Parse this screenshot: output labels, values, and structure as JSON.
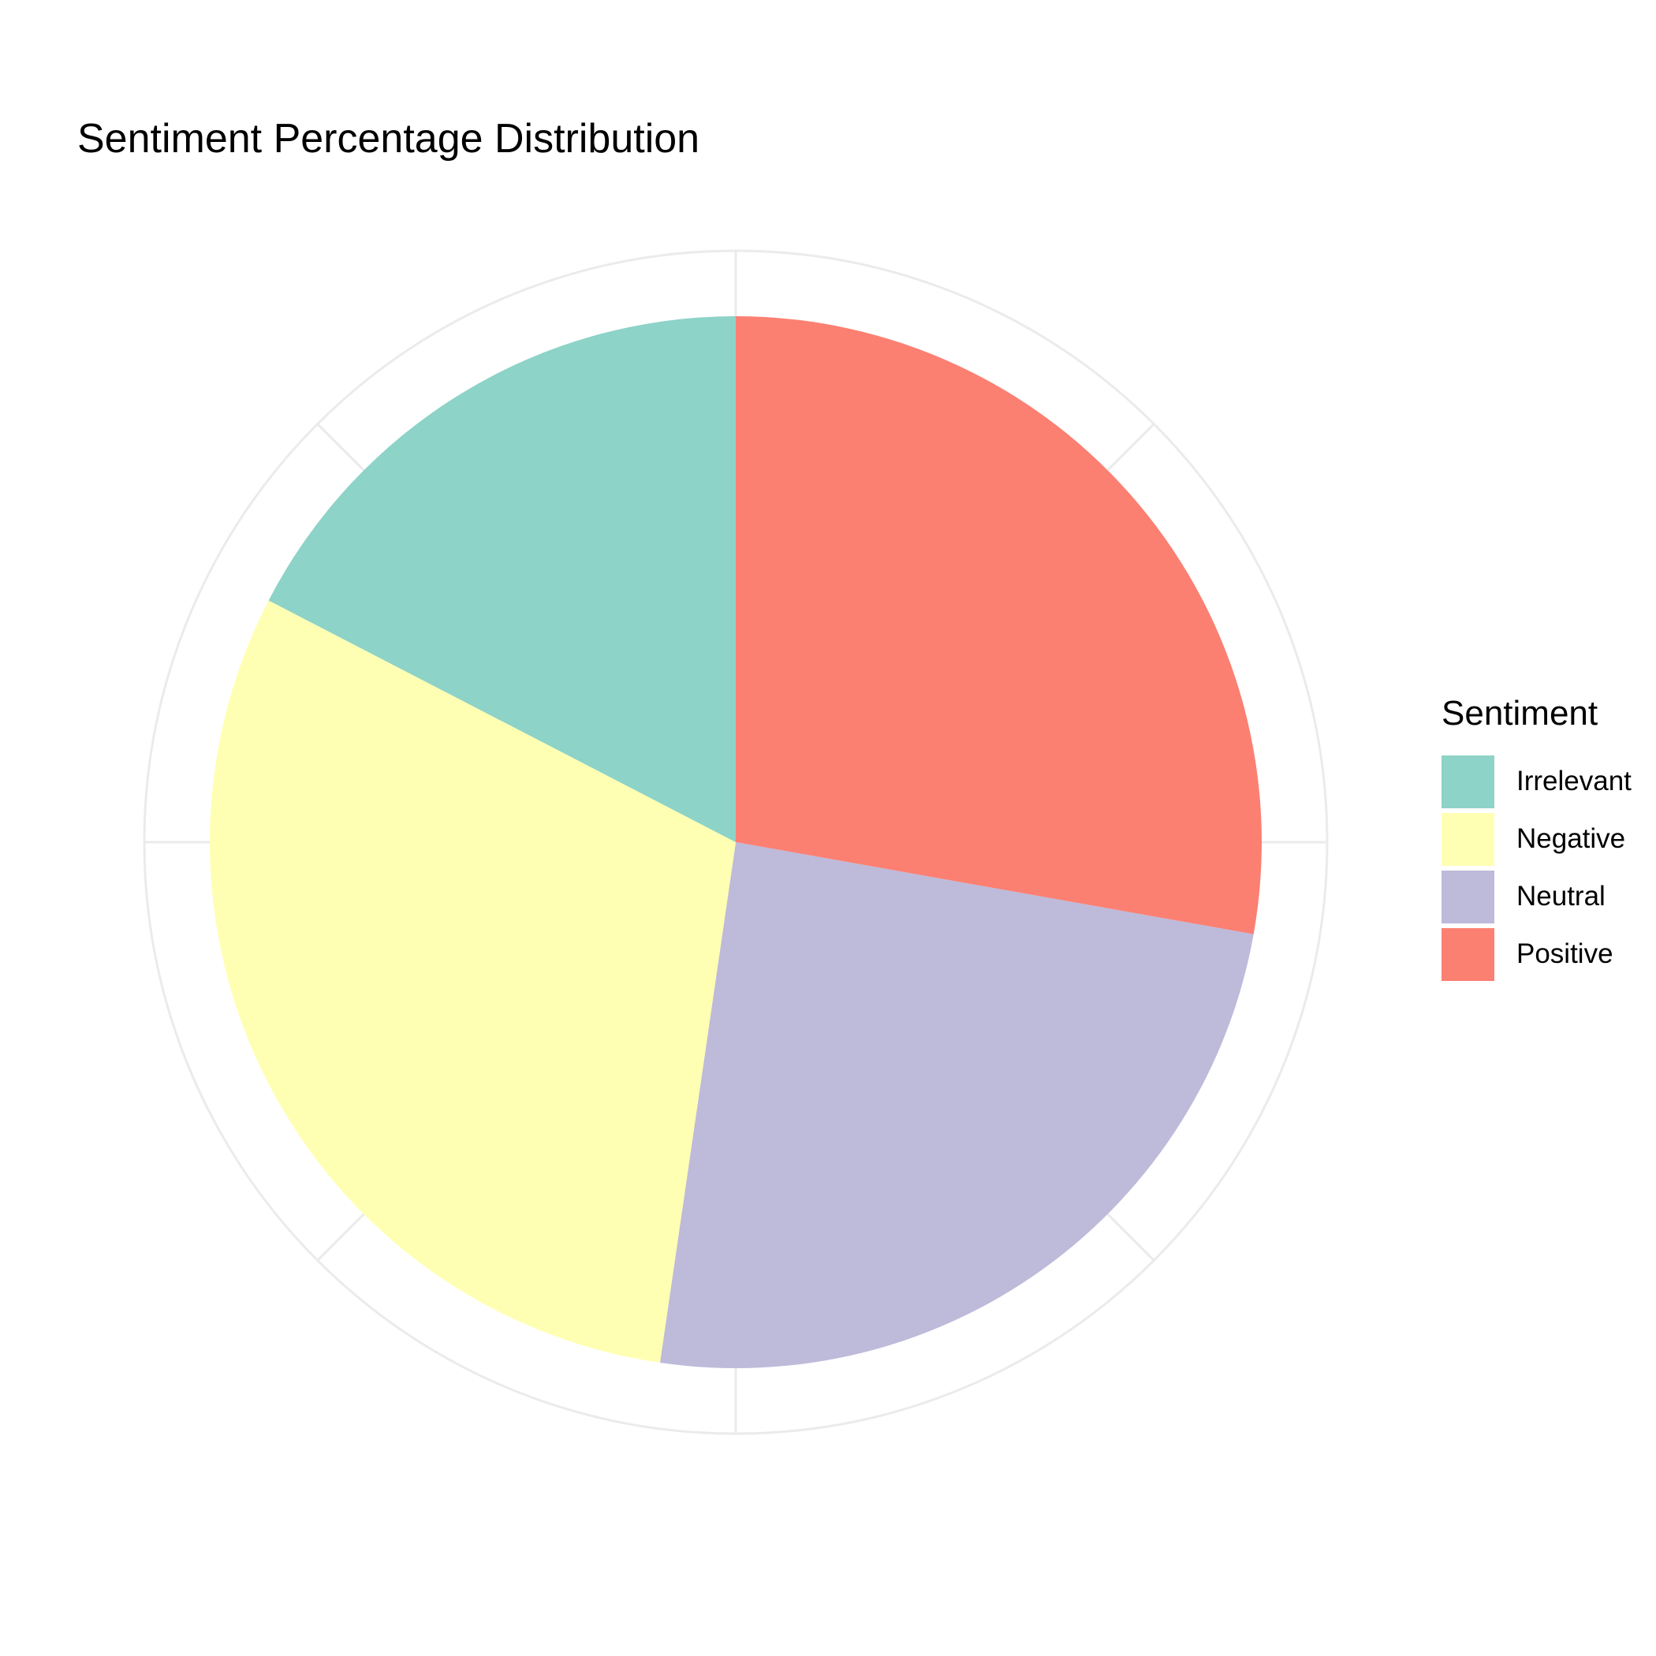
{
  "chart_data": {
    "type": "pie",
    "title": "Sentiment Percentage Distribution",
    "legend": {
      "title": "Sentiment",
      "position": "right"
    },
    "categories": [
      "Irrelevant",
      "Negative",
      "Neutral",
      "Positive"
    ],
    "values": [
      17.4,
      30.3,
      24.5,
      27.8
    ],
    "unit": "%",
    "colors": {
      "Irrelevant": "#8dd3c7",
      "Negative": "#ffffb3",
      "Neutral": "#bebada",
      "Positive": "#fb8072"
    },
    "start_angle": "12 o'clock",
    "direction": "counterclockwise from Positive (Positive starts at 12 o'clock going clockwise)",
    "grid": true,
    "grid_color": "#ebebeb"
  }
}
